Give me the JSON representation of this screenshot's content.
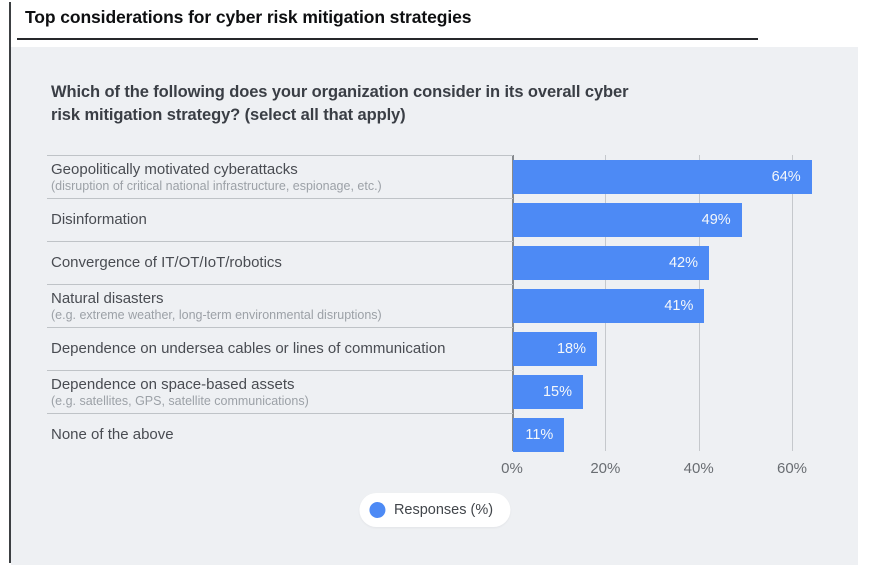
{
  "page": {
    "title": "Top considerations for cyber risk mitigation strategies"
  },
  "chart": {
    "question_line1": "Which of the following does your organization consider in its overall cyber",
    "question_line2": "risk mitigation strategy? (select all that apply)",
    "legend_label": "Responses (%)"
  },
  "chart_data": {
    "type": "bar",
    "orientation": "horizontal",
    "title": "Top considerations for cyber risk mitigation strategies",
    "subtitle": "Which of the following does your organization consider in its overall cyber risk mitigation strategy? (select all that apply)",
    "categories": [
      {
        "label": "Geopolitically motivated cyberattacks",
        "sublabel": "(disruption of critical national infrastructure, espionage, etc.)"
      },
      {
        "label": "Disinformation",
        "sublabel": ""
      },
      {
        "label": "Convergence of IT/OT/IoT/robotics",
        "sublabel": ""
      },
      {
        "label": "Natural disasters",
        "sublabel": "(e.g. extreme weather, long-term environmental disruptions)"
      },
      {
        "label": "Dependence on undersea cables or lines of communication",
        "sublabel": ""
      },
      {
        "label": "Dependence on space-based assets",
        "sublabel": "(e.g. satellites, GPS, satellite communications)"
      },
      {
        "label": "None of the above",
        "sublabel": ""
      }
    ],
    "series": [
      {
        "name": "Responses (%)",
        "values": [
          64,
          49,
          42,
          41,
          18,
          15,
          11
        ]
      }
    ],
    "value_labels": [
      "64%",
      "49%",
      "42%",
      "41%",
      "18%",
      "15%",
      "11%"
    ],
    "x_ticks": [
      {
        "label": "0%",
        "value": 0
      },
      {
        "label": "20%",
        "value": 20
      },
      {
        "label": "40%",
        "value": 40
      },
      {
        "label": "60%",
        "value": 60
      }
    ],
    "xlabel": "",
    "ylabel": "",
    "xlim": [
      0,
      74
    ],
    "grid": "vertical",
    "legend_position": "bottom",
    "colors": {
      "bar": "#4d8af5",
      "panel_bg": "#eef0f3",
      "grid": "#c5c8cc",
      "axis": "#85898d",
      "separator": "#bfc3c7"
    }
  }
}
